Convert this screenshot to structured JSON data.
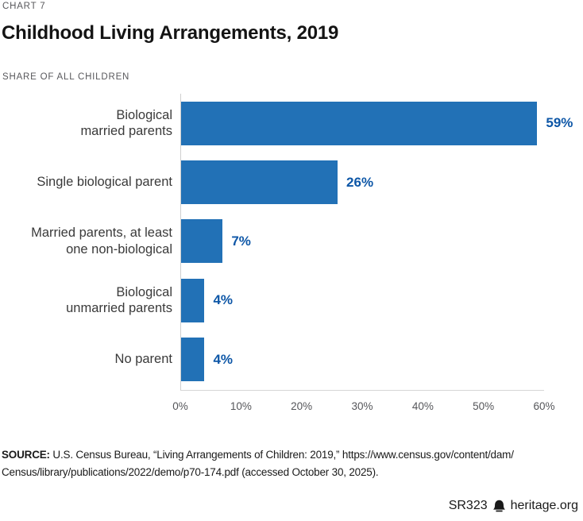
{
  "page": {
    "kicker": "CHART 7",
    "title": "Childhood Living Arrangements, 2019",
    "subtitle": "SHARE OF ALL CHILDREN"
  },
  "chart_data": {
    "type": "bar",
    "orientation": "horizontal",
    "title": "Childhood Living Arrangements, 2019",
    "subtitle": "SHARE OF ALL CHILDREN",
    "categories": [
      [
        "Biological",
        "married parents"
      ],
      [
        "Single biological parent"
      ],
      [
        "Married parents, at least",
        "one non-biological"
      ],
      [
        "Biological",
        "unmarried parents"
      ],
      [
        "No parent"
      ]
    ],
    "values": [
      59,
      26,
      7,
      4,
      4
    ],
    "value_labels": [
      "59%",
      "26%",
      "7%",
      "4%",
      "4%"
    ],
    "xlabel": "",
    "ylabel": "",
    "xlim": [
      0,
      60
    ],
    "x_ticks": [
      "0%",
      "10%",
      "20%",
      "30%",
      "40%",
      "50%",
      "60%"
    ],
    "grid": false,
    "legend": "none",
    "bar_color": "#2271b6",
    "value_label_color": "#0e57a7"
  },
  "source": {
    "label": "SOURCE:",
    "line1": " U.S. Census Bureau, “Living Arrangements of Children: 2019,” https://www.census.gov/content/dam/",
    "line2": "Census/library/publications/2022/demo/p70-174.pdf (accessed October 30, 2025)."
  },
  "footer": {
    "report_id": "SR323",
    "site": "heritage.org"
  }
}
